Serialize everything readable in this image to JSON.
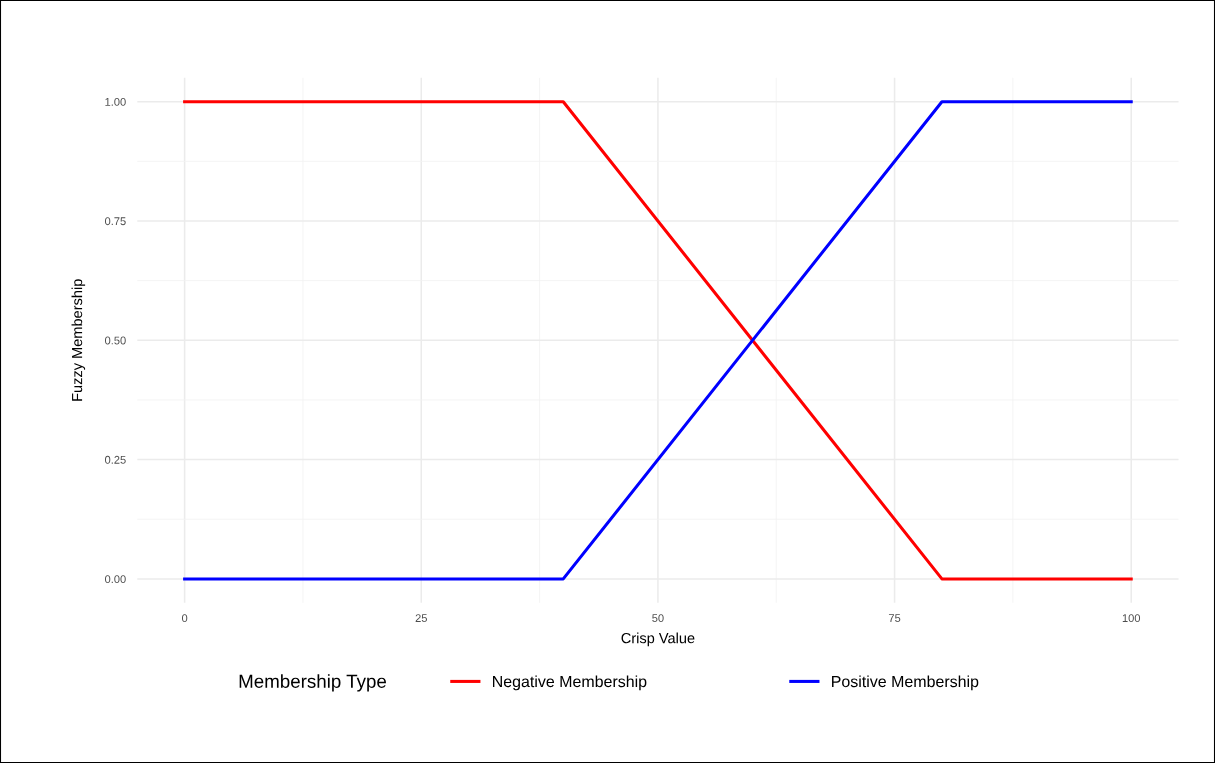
{
  "chart_data": {
    "type": "line",
    "xlabel": "Crisp Value",
    "ylabel": "Fuzzy Membership",
    "legend_title": "Membership Type",
    "x": [
      0,
      40,
      80,
      100
    ],
    "series": [
      {
        "name": "Negative Membership",
        "color": "#ff0000",
        "values": [
          1,
          1,
          0,
          0
        ]
      },
      {
        "name": "Positive Membership",
        "color": "#0000ff",
        "values": [
          0,
          0,
          1,
          1
        ]
      }
    ],
    "xlim": [
      -5,
      105
    ],
    "ylim": [
      -0.05,
      1.05
    ],
    "xticks": [
      0,
      25,
      50,
      75,
      100
    ],
    "yticks": [
      {
        "value": 0,
        "label": "0.00"
      },
      {
        "value": 0.25,
        "label": "0.25"
      },
      {
        "value": 0.5,
        "label": "0.50"
      },
      {
        "value": 0.75,
        "label": "0.75"
      },
      {
        "value": 1,
        "label": "1.00"
      }
    ],
    "grid": true,
    "legend": "bottom",
    "line_style": "solid",
    "marker": "none"
  }
}
